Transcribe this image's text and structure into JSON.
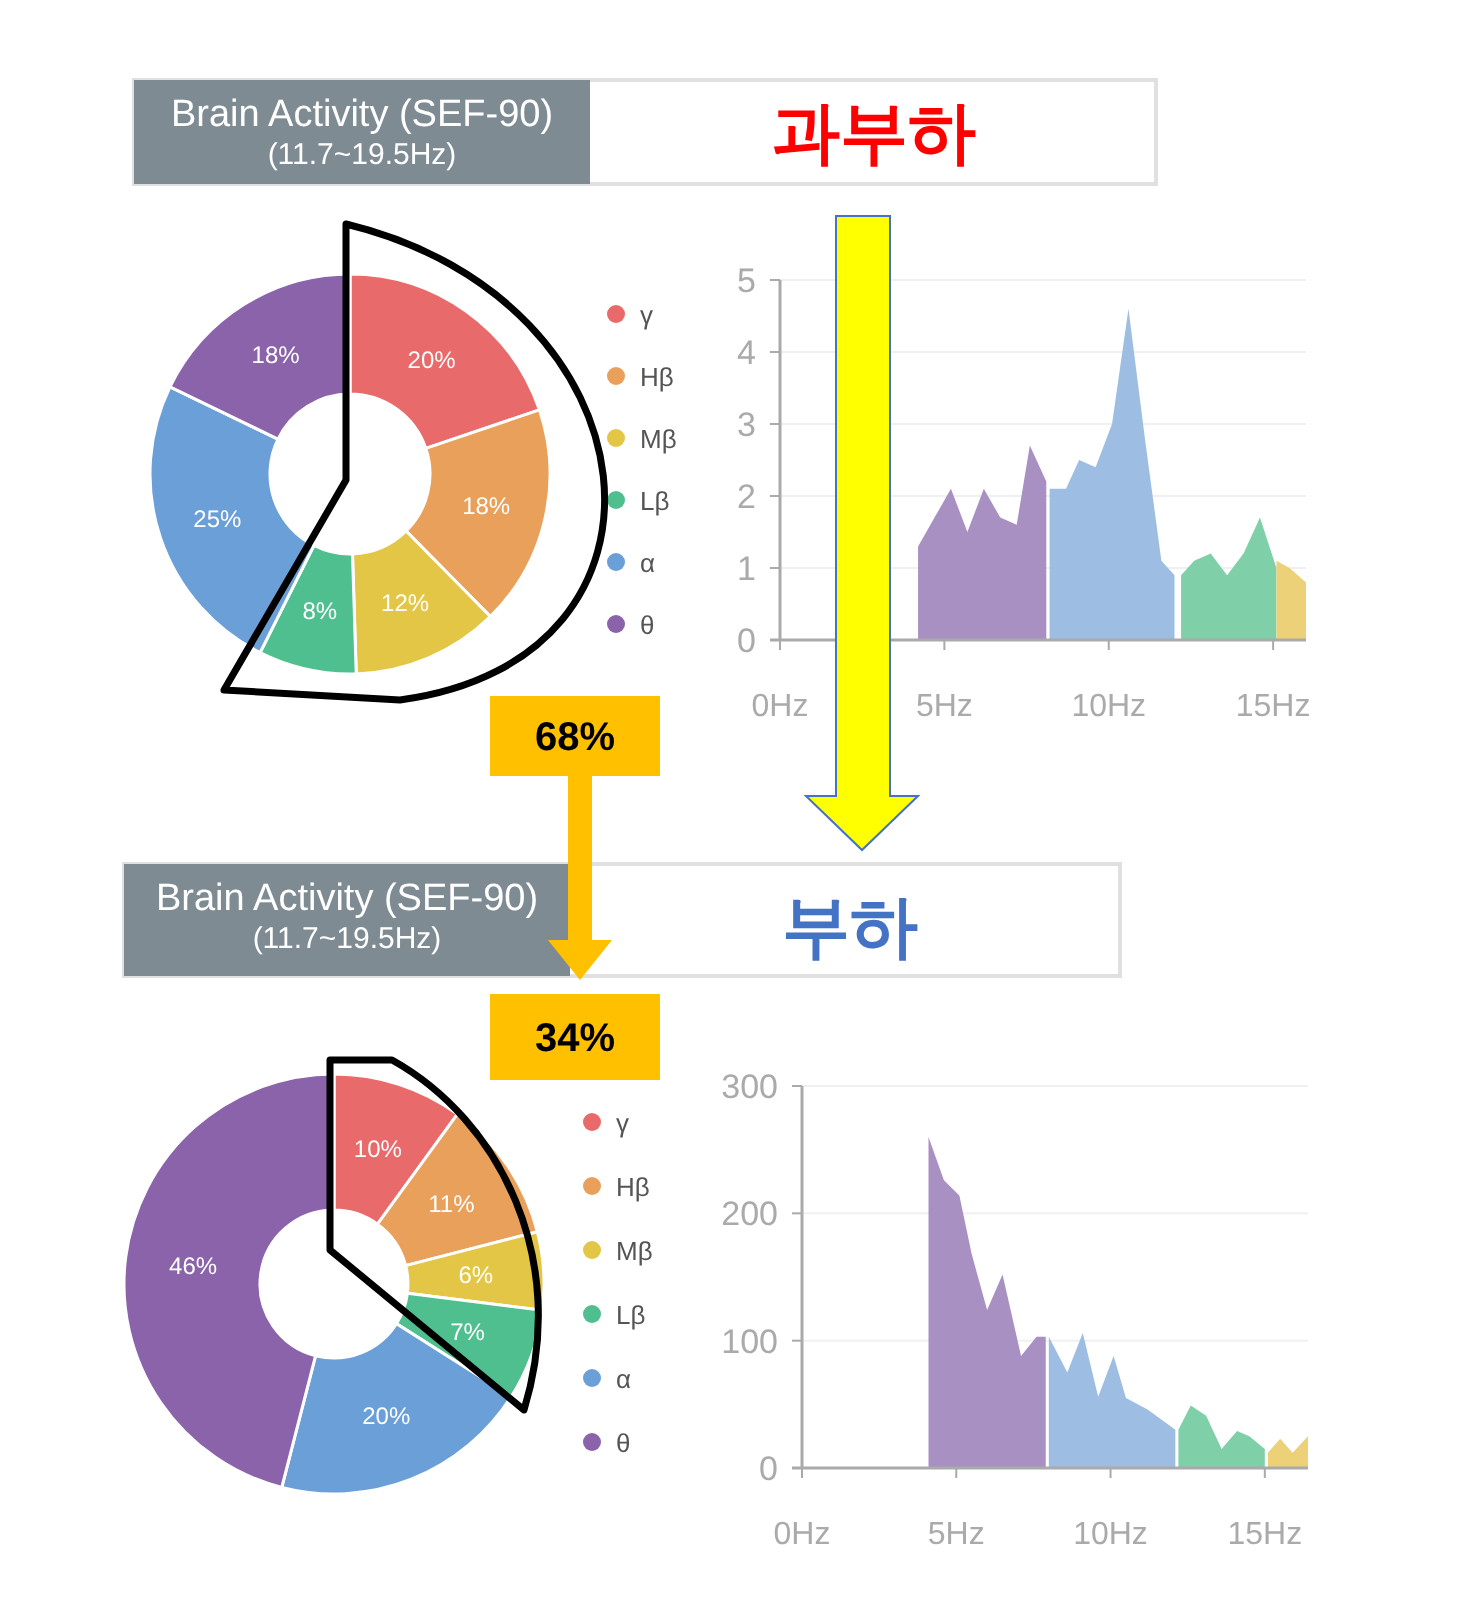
{
  "chart_data": [
    {
      "type": "donut",
      "title": "Brain Activity (SEF-90)",
      "subtitle": "(11.7~19.5Hz)",
      "annotations": [
        "과부하",
        "68%"
      ],
      "categories": [
        "γ",
        "Hβ",
        "Mβ",
        "Lβ",
        "α",
        "θ"
      ],
      "values": [
        20,
        18,
        12,
        8,
        25,
        18
      ],
      "value_labels": [
        "20%",
        "18%",
        "12%",
        "8%",
        "25%",
        "18%"
      ],
      "colors": [
        "#e96a6a",
        "#e9a05a",
        "#e3c646",
        "#4fbf8f",
        "#6a9fd8",
        "#8a63ab"
      ],
      "legend": "right"
    },
    {
      "type": "area",
      "xlim": [
        0,
        16
      ],
      "ylim": [
        0,
        5
      ],
      "grid": "y",
      "xticks": [
        {
          "value": 0,
          "label": "0Hz"
        },
        {
          "value": 5,
          "label": "5Hz"
        },
        {
          "value": 10,
          "label": "10Hz"
        },
        {
          "value": 15,
          "label": "15Hz"
        }
      ],
      "yticks": [
        0,
        1,
        2,
        3,
        4,
        5
      ],
      "series": [
        {
          "color": "#a890c3",
          "x": [
            4.2,
            4.7,
            5.2,
            5.7,
            6.2,
            6.7,
            7.2,
            7.6,
            8.1
          ],
          "values": [
            1.3,
            1.7,
            2.1,
            1.5,
            2.1,
            1.7,
            1.6,
            2.7,
            2.2
          ]
        },
        {
          "color": "#9dbde3",
          "x": [
            8.2,
            8.7,
            9.1,
            9.6,
            10.1,
            10.6,
            11.1,
            11.6,
            12.0
          ],
          "values": [
            2.1,
            2.1,
            2.5,
            2.4,
            3.0,
            4.6,
            2.8,
            1.1,
            0.9
          ]
        },
        {
          "color": "#7fd0a8",
          "x": [
            12.2,
            12.6,
            13.1,
            13.6,
            14.1,
            14.6,
            15.1
          ],
          "values": [
            0.9,
            1.1,
            1.2,
            0.9,
            1.2,
            1.7,
            1.0
          ]
        },
        {
          "color": "#ecd178",
          "x": [
            15.1,
            15.5,
            16.0
          ],
          "values": [
            1.1,
            1.0,
            0.8
          ]
        }
      ]
    },
    {
      "type": "donut",
      "title": "Brain Activity (SEF-90)",
      "subtitle": "(11.7~19.5Hz)",
      "annotations": [
        "부하",
        "34%"
      ],
      "categories": [
        "γ",
        "Hβ",
        "Mβ",
        "Lβ",
        "α",
        "θ"
      ],
      "values": [
        10,
        11,
        6,
        7,
        20,
        46
      ],
      "value_labels": [
        "10%",
        "11%",
        "6%",
        "7%",
        "20%",
        "46%"
      ],
      "colors": [
        "#e96a6a",
        "#e9a05a",
        "#e3c646",
        "#4fbf8f",
        "#6a9fd8",
        "#8a63ab"
      ],
      "legend": "right"
    },
    {
      "type": "area",
      "xlim": [
        0,
        16.4
      ],
      "ylim": [
        0,
        300
      ],
      "grid": "y",
      "xticks": [
        {
          "value": 0,
          "label": "0Hz"
        },
        {
          "value": 5,
          "label": "5Hz"
        },
        {
          "value": 10,
          "label": "10Hz"
        },
        {
          "value": 15,
          "label": "15Hz"
        }
      ],
      "yticks": [
        0,
        100,
        200,
        300
      ],
      "series": [
        {
          "color": "#a890c3",
          "x": [
            4.1,
            4.6,
            5.1,
            5.5,
            6.0,
            6.5,
            7.1,
            7.6,
            7.9
          ],
          "values": [
            260,
            226,
            214,
            168,
            124,
            152,
            88,
            103,
            103
          ]
        },
        {
          "color": "#9dbde3",
          "x": [
            8.0,
            8.6,
            9.1,
            9.6,
            10.1,
            10.5,
            11.2,
            12.1
          ],
          "values": [
            103,
            75,
            106,
            56,
            88,
            55,
            46,
            30
          ]
        },
        {
          "color": "#7fd0a8",
          "x": [
            12.2,
            12.6,
            13.1,
            13.6,
            14.1,
            14.5,
            15.0
          ],
          "values": [
            30,
            49,
            41,
            15,
            29,
            25,
            15
          ]
        },
        {
          "color": "#ecd178",
          "x": [
            15.1,
            15.5,
            15.9,
            16.4
          ],
          "values": [
            12,
            23,
            12,
            25
          ]
        }
      ]
    }
  ]
}
